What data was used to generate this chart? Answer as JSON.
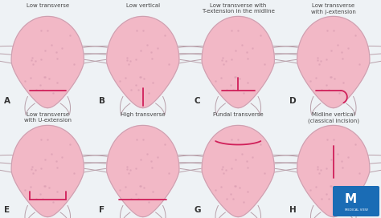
{
  "bg_color": "#eef2f5",
  "uterus_fill": "#f2b8c6",
  "uterus_edge": "#c8a0b0",
  "incision_color": "#d0205a",
  "label_color": "#444444",
  "letter_color": "#333333",
  "logo_color": "#1a6cb5",
  "title_fontsize": 5.0,
  "letter_fontsize": 7.5,
  "panels": [
    {
      "label": "A",
      "title": "Low transverse",
      "incision": "low_transverse"
    },
    {
      "label": "B",
      "title": "Low vertical",
      "incision": "low_vertical"
    },
    {
      "label": "C",
      "title": "Low transverse with\nT-extension in the midline",
      "incision": "t_extension"
    },
    {
      "label": "D",
      "title": "Low transverse\nwith j-extension",
      "incision": "j_extension"
    },
    {
      "label": "E",
      "title": "Low transverse\nwith U-extension",
      "incision": "u_extension"
    },
    {
      "label": "F",
      "title": "High transverse",
      "incision": "high_transverse"
    },
    {
      "label": "G",
      "title": "Fundal transverse",
      "incision": "fundal_transverse"
    },
    {
      "label": "H",
      "title": "Midline vertical\n(classical incision)",
      "incision": "midline_vertical"
    }
  ]
}
